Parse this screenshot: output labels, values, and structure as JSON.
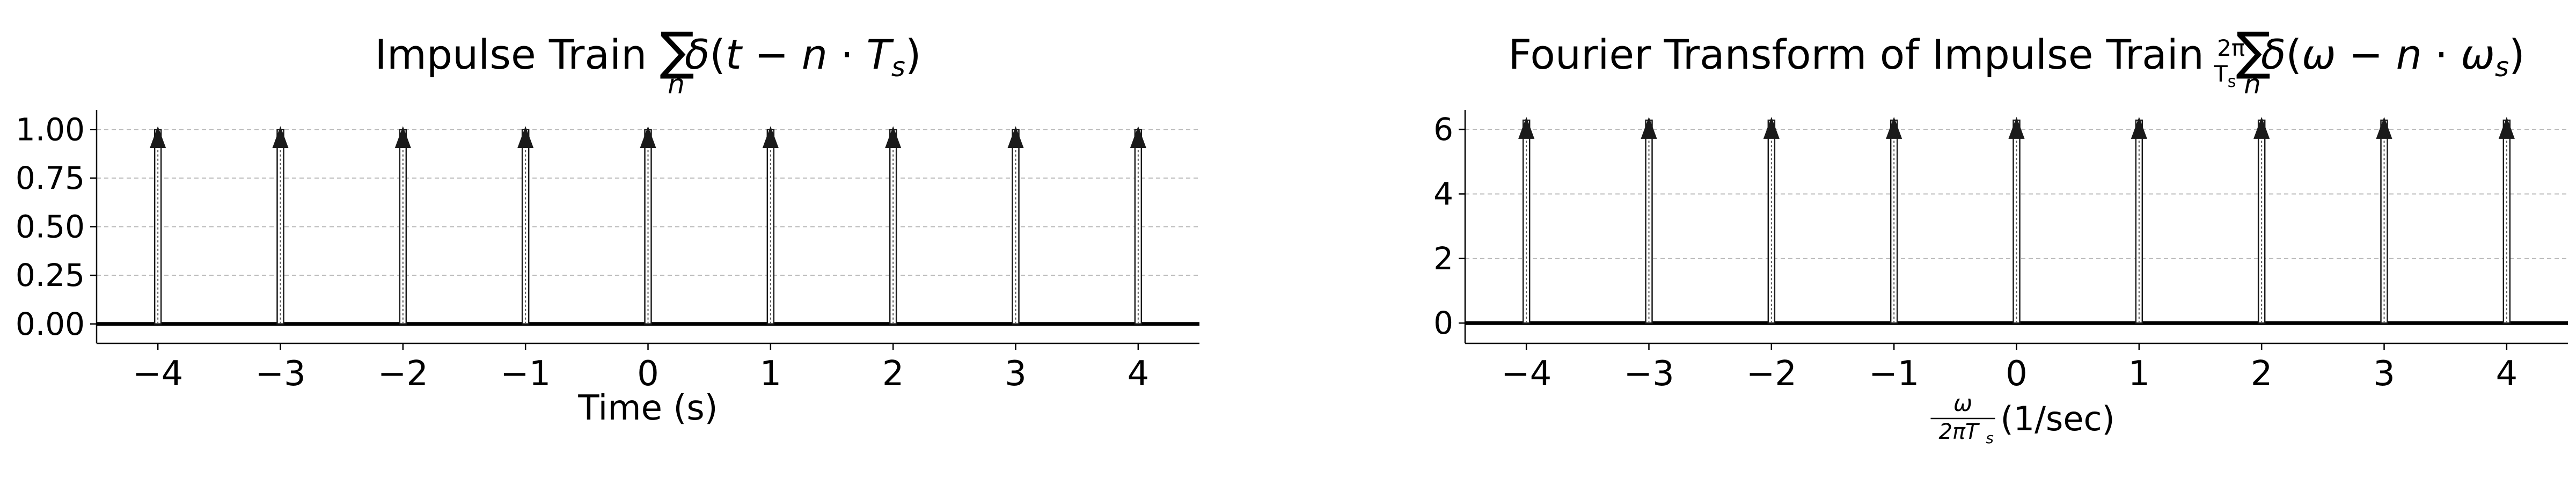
{
  "chart_data": [
    {
      "type": "stem",
      "title": "Impulse Train ∑_n δ(t − n·T_s)",
      "title_parts": {
        "prefix": "Impulse Train ",
        "coef_num": "",
        "coef_den": "",
        "sum_symbol": "∑",
        "sum_sub": "n",
        "delta": "δ",
        "var": "t",
        "minus": " − ",
        "n": "n",
        "dot": " · ",
        "period": "T",
        "period_sub": "s"
      },
      "xlabel": "Time (s)",
      "ylabel": "",
      "x": [
        -4,
        -3,
        -2,
        -1,
        0,
        1,
        2,
        3,
        4
      ],
      "y": [
        1,
        1,
        1,
        1,
        1,
        1,
        1,
        1,
        1
      ],
      "xlim": [
        -4.5,
        4.5
      ],
      "ylim": [
        -0.1,
        1.1
      ],
      "xticks": [
        -4,
        -3,
        -2,
        -1,
        0,
        1,
        2,
        3,
        4
      ],
      "xtick_labels": [
        "−4",
        "−3",
        "−2",
        "−1",
        "0",
        "1",
        "2",
        "3",
        "4"
      ],
      "yticks": [
        0,
        0.25,
        0.5,
        0.75,
        1.0
      ],
      "ytick_labels": [
        "0.00",
        "0.25",
        "0.50",
        "0.75",
        "1.00"
      ],
      "grid": "horizontal dashed",
      "color": "#1a1a1a"
    },
    {
      "type": "stem",
      "title": "Fourier Transform of Impulse Train (2π/T_s) ∑_n δ(ω − n·ω_s)",
      "title_parts": {
        "prefix": "Fourier Transform of Impulse Train ",
        "coef_num": "2π",
        "coef_den": "T",
        "coef_den_sub": "s",
        "sum_symbol": "∑",
        "sum_sub": "n",
        "delta": "δ",
        "var": "ω",
        "minus": " − ",
        "n": "n",
        "dot": " · ",
        "period": "ω",
        "period_sub": "s"
      },
      "xlabel": "ω / (2πT_s) (1/sec)",
      "xlabel_parts": {
        "frac_num": "ω",
        "frac_den": "2πT",
        "frac_den_sub": "s",
        "suffix": " (1/sec)"
      },
      "ylabel": "",
      "x": [
        -4,
        -3,
        -2,
        -1,
        0,
        1,
        2,
        3,
        4
      ],
      "y": [
        6.2832,
        6.2832,
        6.2832,
        6.2832,
        6.2832,
        6.2832,
        6.2832,
        6.2832,
        6.2832
      ],
      "xlim": [
        -4.5,
        4.5
      ],
      "ylim": [
        -0.628,
        6.6
      ],
      "xticks": [
        -4,
        -3,
        -2,
        -1,
        0,
        1,
        2,
        3,
        4
      ],
      "xtick_labels": [
        "−4",
        "−3",
        "−2",
        "−1",
        "0",
        "1",
        "2",
        "3",
        "4"
      ],
      "yticks": [
        0,
        2,
        4,
        6
      ],
      "ytick_labels": [
        "0",
        "2",
        "4",
        "6"
      ],
      "grid": "horizontal dashed",
      "color": "#1a1a1a"
    }
  ]
}
